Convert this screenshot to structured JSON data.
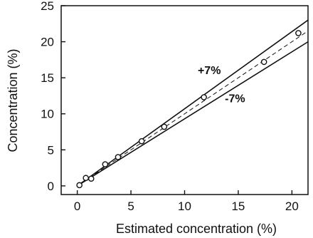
{
  "chart_data": {
    "type": "scatter",
    "title": "",
    "xlabel": "Estimated concentration (%)",
    "ylabel": "Concentration (%)",
    "xlim": [
      -1.5,
      21.5
    ],
    "ylim": [
      -1.2,
      25
    ],
    "grid": false,
    "x_ticks": [
      0,
      5,
      10,
      15,
      20
    ],
    "y_ticks": [
      0,
      5,
      10,
      15,
      20,
      25
    ],
    "x_tick_labels": [
      "0",
      "5",
      "10",
      "15",
      "20"
    ],
    "y_tick_labels": [
      "0",
      "5",
      "10",
      "15",
      "20",
      "25"
    ],
    "points": [
      {
        "x": 0.2,
        "y": 0.1
      },
      {
        "x": 0.8,
        "y": 1.1
      },
      {
        "x": 1.3,
        "y": 1.0
      },
      {
        "x": 2.6,
        "y": 3.0
      },
      {
        "x": 3.8,
        "y": 4.0
      },
      {
        "x": 6.0,
        "y": 6.2
      },
      {
        "x": 8.1,
        "y": 8.2
      },
      {
        "x": 11.8,
        "y": 12.3
      },
      {
        "x": 17.4,
        "y": 17.2
      },
      {
        "x": 20.6,
        "y": 21.2
      }
    ],
    "lines": [
      {
        "style": "dashed",
        "slope": 1.0,
        "x_range": [
          0,
          21.5
        ]
      },
      {
        "style": "solid",
        "slope": 1.07,
        "x_range": [
          0,
          21.5
        ],
        "label": "+7%",
        "label_at": [
          12.3,
          15.5
        ]
      },
      {
        "style": "solid",
        "slope": 0.93,
        "x_range": [
          0,
          21.5
        ],
        "label": "-7%",
        "label_at": [
          14.7,
          11.6
        ]
      }
    ]
  }
}
